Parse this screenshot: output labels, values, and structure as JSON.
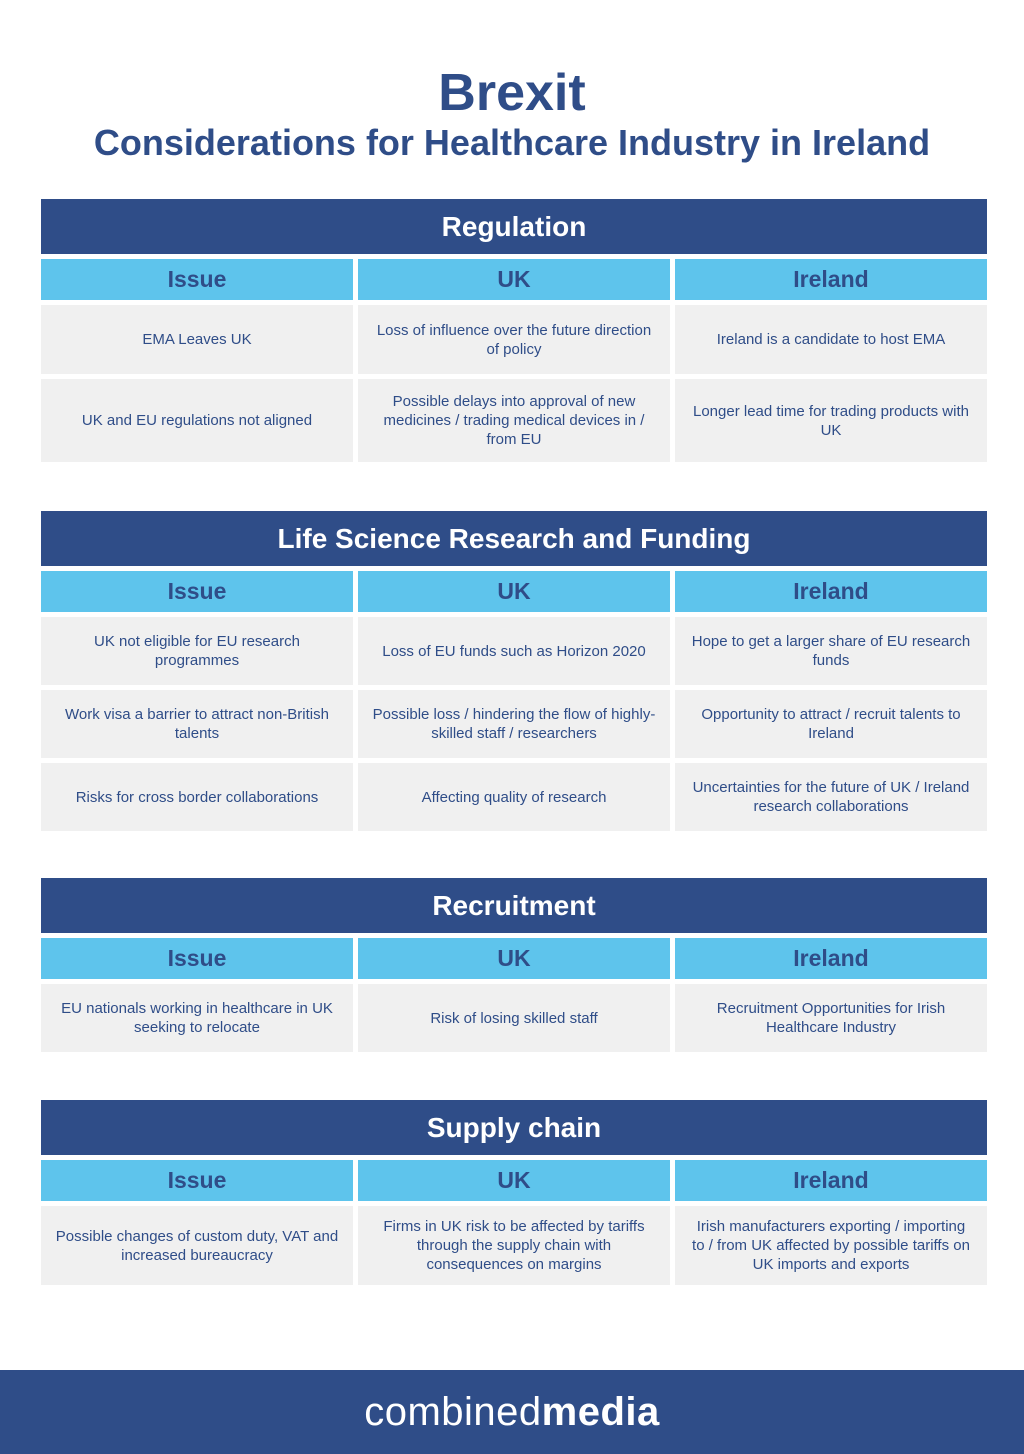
{
  "header": {
    "title": "Brexit",
    "subtitle": "Considerations for Healthcare Industry in Ireland"
  },
  "columns": [
    "Issue",
    "UK",
    "Ireland"
  ],
  "sections": {
    "regulation": {
      "title": "Regulation",
      "rows": [
        [
          "EMA Leaves UK",
          "Loss of influence over the future direction of policy",
          "Ireland is a candidate to host EMA"
        ],
        [
          "UK and EU regulations not aligned",
          "Possible delays into approval of new medicines / trading medical devices in / from EU",
          "Longer lead time for trading products with UK"
        ]
      ]
    },
    "research": {
      "title": "Life Science Research and Funding",
      "rows": [
        [
          "UK not eligible for EU research programmes",
          "Loss of EU funds such as Horizon 2020",
          "Hope to get a larger share of EU research funds"
        ],
        [
          "Work visa a barrier to attract non-British talents",
          "Possible loss / hindering the flow of highly-skilled staff / researchers",
          "Opportunity to attract / recruit talents to Ireland"
        ],
        [
          "Risks for cross border collaborations",
          "Affecting quality of research",
          "Uncertainties for the future of UK / Ireland research collaborations"
        ]
      ]
    },
    "recruitment": {
      "title": "Recruitment",
      "rows": [
        [
          "EU nationals working in healthcare in UK seeking to relocate",
          "Risk of losing skilled staff",
          "Recruitment Opportunities for Irish Healthcare Industry"
        ]
      ]
    },
    "supply": {
      "title": "Supply chain",
      "rows": [
        [
          "Possible changes of custom duty, VAT and increased bureaucracy",
          "Firms in UK risk to be affected by tariffs through the supply chain with consequences on margins",
          "Irish manufacturers exporting / importing to / from UK affected by possible tariffs on UK imports and exports"
        ]
      ]
    }
  },
  "footer": {
    "logo_light": "combined",
    "logo_bold": "media"
  },
  "colors": {
    "navy": "#2f4d88",
    "sky": "#5ec4ec",
    "cell": "#f0f0f0"
  }
}
